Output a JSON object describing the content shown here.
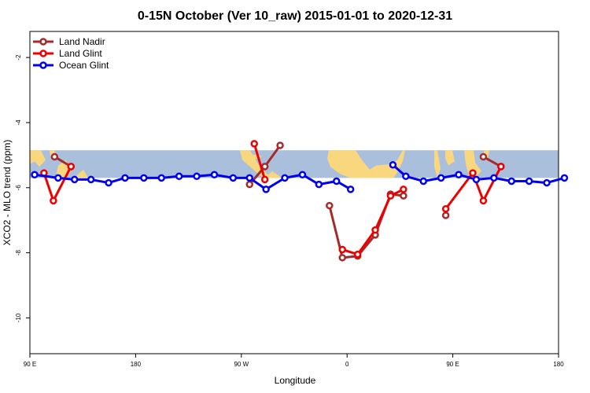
{
  "chart_data": {
    "type": "line",
    "title": "0-15N October (Ver 10_raw)   2015-01-01 to 2020-12-31",
    "xlabel": "Longitude",
    "ylabel": "XCO2 - MLO trend (ppm)",
    "x_ticks": [
      {
        "value": 90,
        "label": "90 E"
      },
      {
        "value": 180,
        "label": "180"
      },
      {
        "value": 270,
        "label": "90 W"
      },
      {
        "value": 360,
        "label": "0"
      },
      {
        "value": 450,
        "label": "90 E"
      },
      {
        "value": 540,
        "label": "180"
      }
    ],
    "y_ticks": [
      -10,
      -8,
      -6,
      -4,
      -2
    ],
    "xlim": [
      90,
      540
    ],
    "ylim": [
      -11.1,
      -1.2
    ],
    "map_band_ylim": [
      -5.7,
      -4.85
    ],
    "legend_position": "top-left",
    "series": [
      {
        "name": "Land Nadir",
        "color": "#a52a2a",
        "segments": [
          [
            [
              111,
              -5.05
            ],
            [
              125,
              -5.35
            ]
          ],
          [
            [
              277,
              -5.9
            ],
            [
              290,
              -5.35
            ],
            [
              303,
              -4.7
            ]
          ],
          [
            [
              345,
              -6.55
            ],
            [
              356,
              -8.15
            ],
            [
              369,
              -8.1
            ],
            [
              384,
              -7.45
            ],
            [
              397,
              -6.2
            ],
            [
              408,
              -6.25
            ]
          ],
          [
            [
              444,
              -6.85
            ]
          ],
          [
            [
              476,
              -5.05
            ],
            [
              491,
              -5.35
            ]
          ]
        ]
      },
      {
        "name": "Land Glint",
        "color": "#ee0000",
        "segments": [
          [
            [
              102,
              -5.55
            ],
            [
              110,
              -6.4
            ],
            [
              125,
              -5.35
            ]
          ],
          [
            [
              281,
              -4.65
            ],
            [
              290,
              -5.75
            ]
          ],
          [
            [
              356,
              -7.9
            ],
            [
              369,
              -8.05
            ],
            [
              384,
              -7.3
            ],
            [
              397,
              -6.25
            ],
            [
              408,
              -6.05
            ]
          ],
          [
            [
              444,
              -6.65
            ],
            [
              467,
              -5.55
            ],
            [
              476,
              -6.4
            ],
            [
              491,
              -5.35
            ]
          ]
        ]
      },
      {
        "name": "Ocean Glint",
        "color": "#0000ee",
        "segments": [
          [
            [
              94,
              -5.6
            ],
            [
              114,
              -5.7
            ],
            [
              128,
              -5.75
            ],
            [
              142,
              -5.75
            ],
            [
              157,
              -5.85
            ],
            [
              171,
              -5.7
            ],
            [
              187,
              -5.7
            ],
            [
              202,
              -5.7
            ],
            [
              217,
              -5.65
            ],
            [
              232,
              -5.65
            ],
            [
              247,
              -5.6
            ],
            [
              263,
              -5.7
            ],
            [
              277,
              -5.7
            ],
            [
              291,
              -6.05
            ],
            [
              307,
              -5.7
            ],
            [
              322,
              -5.6
            ],
            [
              336,
              -5.9
            ],
            [
              351,
              -5.8
            ],
            [
              363,
              -6.05
            ]
          ],
          [
            [
              399,
              -5.3
            ],
            [
              410,
              -5.65
            ],
            [
              425,
              -5.8
            ],
            [
              440,
              -5.7
            ],
            [
              455,
              -5.6
            ],
            [
              470,
              -5.75
            ],
            [
              485,
              -5.7
            ],
            [
              500,
              -5.8
            ],
            [
              515,
              -5.8
            ],
            [
              530,
              -5.85
            ],
            [
              545,
              -5.7
            ]
          ]
        ]
      }
    ]
  }
}
